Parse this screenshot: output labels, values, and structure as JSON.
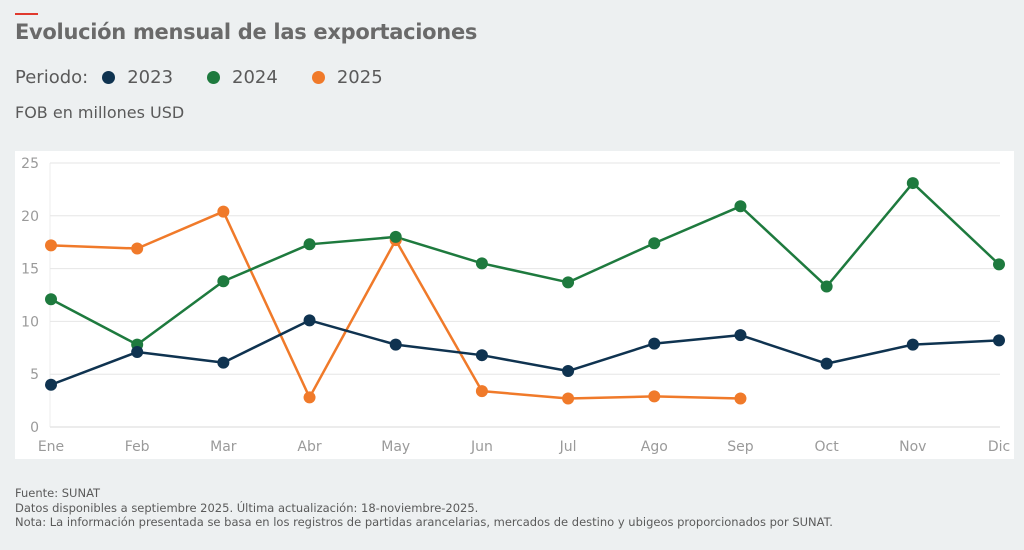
{
  "header": {
    "title": "Evolución mensual de las exportaciones",
    "legend_prefix": "Periodo:",
    "unit": "FOB en millones USD"
  },
  "colors": {
    "accent": "#e03a2e",
    "2023": "#0f3350",
    "2024": "#1e7a3e",
    "2025": "#f07a2a",
    "grid": "#e6e6e6",
    "tick": "#9a9a9a"
  },
  "chart_data": {
    "type": "line",
    "title": "Evolución mensual de las exportaciones",
    "xlabel": "",
    "ylabel": "FOB en millones USD",
    "ylim": [
      0,
      25
    ],
    "yticks": [
      0,
      5,
      10,
      15,
      20,
      25
    ],
    "grid": true,
    "legend_position": "top-left",
    "categories": [
      "Ene",
      "Feb",
      "Mar",
      "Abr",
      "May",
      "Jun",
      "Jul",
      "Ago",
      "Sep",
      "Oct",
      "Nov",
      "Dic"
    ],
    "series": [
      {
        "name": "2023",
        "color": "#0f3350",
        "values": [
          4.0,
          7.1,
          6.1,
          10.1,
          7.8,
          6.8,
          5.3,
          7.9,
          8.7,
          6.0,
          7.8,
          8.2
        ]
      },
      {
        "name": "2024",
        "color": "#1e7a3e",
        "values": [
          12.1,
          7.8,
          13.8,
          17.3,
          18.0,
          15.5,
          13.7,
          17.4,
          20.9,
          13.3,
          23.1,
          15.4
        ]
      },
      {
        "name": "2025",
        "color": "#f07a2a",
        "values": [
          17.2,
          16.9,
          20.4,
          2.8,
          17.7,
          3.4,
          2.7,
          2.9,
          2.7,
          null,
          null,
          null
        ]
      }
    ]
  },
  "footer": {
    "source": "Fuente: SUNAT",
    "update": "Datos disponibles a septiembre 2025. Última actualización: 18-noviembre-2025.",
    "note": "Nota: La información presentada se basa en los registros de partidas arancelarias, mercados de destino y ubigeos proporcionados por SUNAT."
  }
}
